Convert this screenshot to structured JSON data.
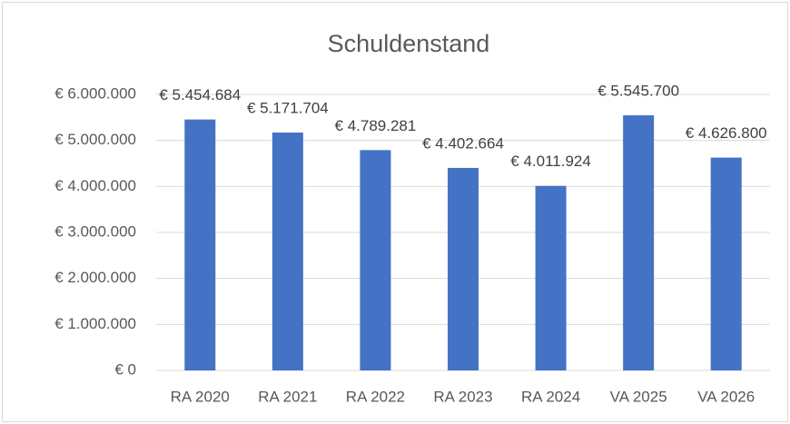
{
  "chart_data": {
    "type": "bar",
    "title": "Schuldenstand",
    "categories": [
      "RA 2020",
      "RA 2021",
      "RA 2022",
      "RA 2023",
      "RA 2024",
      "VA 2025",
      "VA 2026"
    ],
    "values": [
      5454684,
      5171704,
      4789281,
      4402664,
      4011924,
      5545700,
      4626800
    ],
    "value_labels": [
      "€ 5.454.684",
      "€ 5.171.704",
      "€ 4.789.281",
      "€ 4.402.664",
      "€ 4.011.924",
      "€ 5.545.700",
      "€ 4.626.800"
    ],
    "color": "#4472c4",
    "ylim": [
      0,
      6000000
    ],
    "yticks": [
      {
        "value": 0,
        "label": "€ 0"
      },
      {
        "value": 1000000,
        "label": "€ 1.000.000"
      },
      {
        "value": 2000000,
        "label": "€ 2.000.000"
      },
      {
        "value": 3000000,
        "label": "€ 3.000.000"
      },
      {
        "value": 4000000,
        "label": "€ 4.000.000"
      },
      {
        "value": 5000000,
        "label": "€ 5.000.000"
      },
      {
        "value": 6000000,
        "label": "€ 6.000.000"
      }
    ],
    "grid": true
  }
}
